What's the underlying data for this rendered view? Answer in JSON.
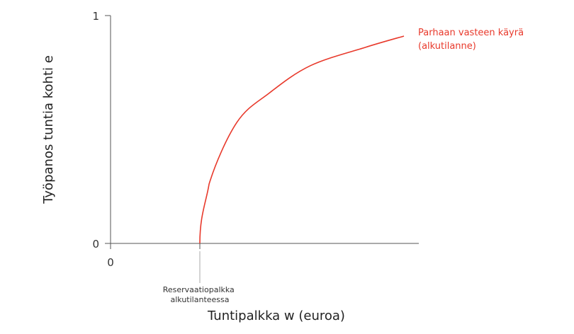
{
  "chart_data": {
    "type": "line",
    "title": "",
    "xlabel": "Tuntipalkka w (euroa)",
    "ylabel": "Työpanos tuntia kohti e",
    "y_ticks": [
      "0",
      "1"
    ],
    "x_ticks": [
      "0"
    ],
    "ylim": [
      0,
      1
    ],
    "grid": false,
    "series": [
      {
        "name": "Parhaan vasteen käyrä (alkutilanne)",
        "label_lines": [
          "Parhaan vasteen käyrä",
          "(alkutilanne)"
        ],
        "color": "#e8392b",
        "e_values": [
          0,
          0.26,
          0.53,
          0.66,
          0.78,
          0.86,
          0.91
        ]
      }
    ],
    "annotation": {
      "lines": [
        "Reservaatiopalkka",
        "alkutilanteessa"
      ]
    },
    "axis_color": "#555555"
  }
}
